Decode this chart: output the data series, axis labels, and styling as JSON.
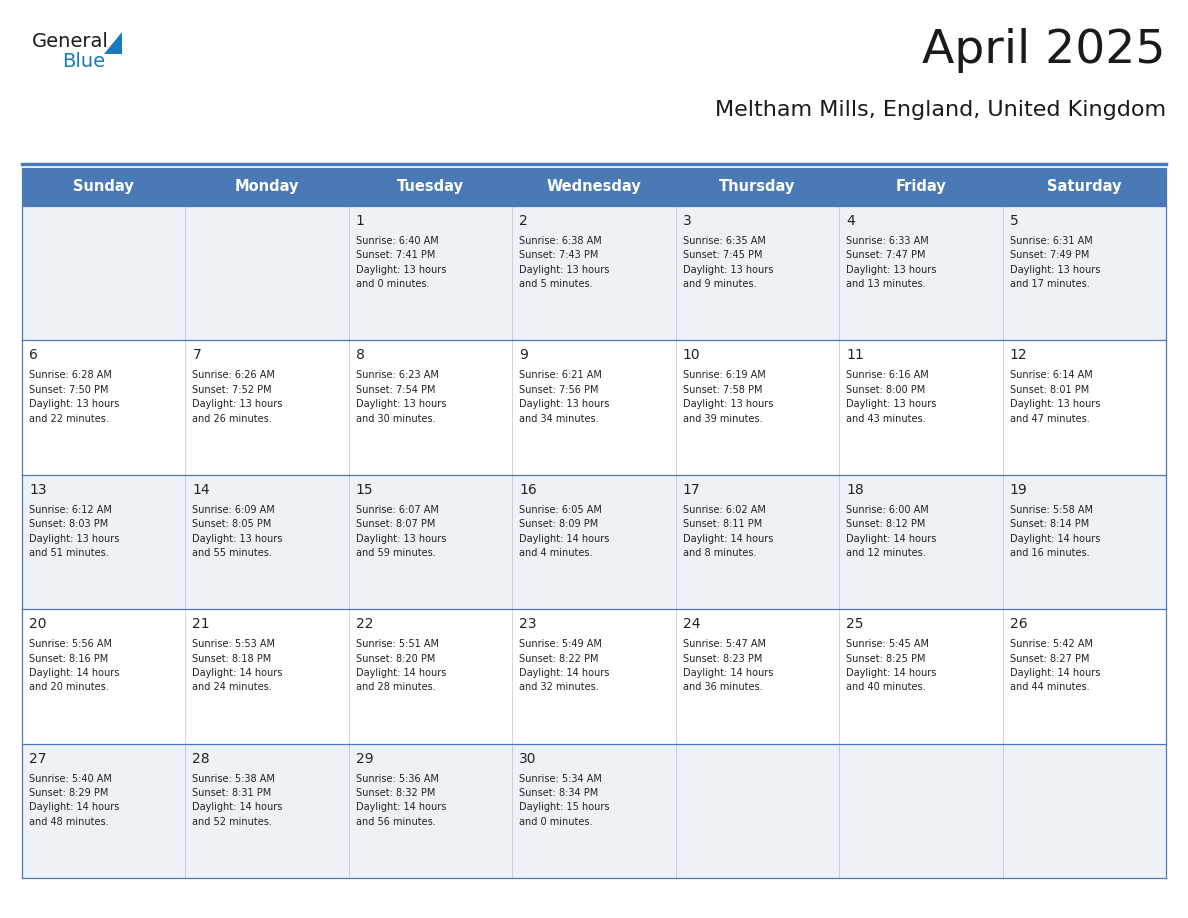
{
  "title": "April 2025",
  "subtitle": "Meltham Mills, England, United Kingdom",
  "days_of_week": [
    "Sunday",
    "Monday",
    "Tuesday",
    "Wednesday",
    "Thursday",
    "Friday",
    "Saturday"
  ],
  "header_bg": "#4a7ab5",
  "header_text": "#ffffff",
  "row_bg_odd": "#eef2f7",
  "row_bg_even": "#ffffff",
  "cell_border_color": "#4a7ab5",
  "day_number_color": "#222222",
  "info_text_color": "#222222",
  "title_color": "#1a1a1a",
  "subtitle_color": "#1a1a1a",
  "logo_general_color": "#1a1a1a",
  "logo_blue_color": "#1a7abf",
  "weeks": [
    [
      {
        "day": null,
        "info": ""
      },
      {
        "day": null,
        "info": ""
      },
      {
        "day": 1,
        "info": "Sunrise: 6:40 AM\nSunset: 7:41 PM\nDaylight: 13 hours\nand 0 minutes."
      },
      {
        "day": 2,
        "info": "Sunrise: 6:38 AM\nSunset: 7:43 PM\nDaylight: 13 hours\nand 5 minutes."
      },
      {
        "day": 3,
        "info": "Sunrise: 6:35 AM\nSunset: 7:45 PM\nDaylight: 13 hours\nand 9 minutes."
      },
      {
        "day": 4,
        "info": "Sunrise: 6:33 AM\nSunset: 7:47 PM\nDaylight: 13 hours\nand 13 minutes."
      },
      {
        "day": 5,
        "info": "Sunrise: 6:31 AM\nSunset: 7:49 PM\nDaylight: 13 hours\nand 17 minutes."
      }
    ],
    [
      {
        "day": 6,
        "info": "Sunrise: 6:28 AM\nSunset: 7:50 PM\nDaylight: 13 hours\nand 22 minutes."
      },
      {
        "day": 7,
        "info": "Sunrise: 6:26 AM\nSunset: 7:52 PM\nDaylight: 13 hours\nand 26 minutes."
      },
      {
        "day": 8,
        "info": "Sunrise: 6:23 AM\nSunset: 7:54 PM\nDaylight: 13 hours\nand 30 minutes."
      },
      {
        "day": 9,
        "info": "Sunrise: 6:21 AM\nSunset: 7:56 PM\nDaylight: 13 hours\nand 34 minutes."
      },
      {
        "day": 10,
        "info": "Sunrise: 6:19 AM\nSunset: 7:58 PM\nDaylight: 13 hours\nand 39 minutes."
      },
      {
        "day": 11,
        "info": "Sunrise: 6:16 AM\nSunset: 8:00 PM\nDaylight: 13 hours\nand 43 minutes."
      },
      {
        "day": 12,
        "info": "Sunrise: 6:14 AM\nSunset: 8:01 PM\nDaylight: 13 hours\nand 47 minutes."
      }
    ],
    [
      {
        "day": 13,
        "info": "Sunrise: 6:12 AM\nSunset: 8:03 PM\nDaylight: 13 hours\nand 51 minutes."
      },
      {
        "day": 14,
        "info": "Sunrise: 6:09 AM\nSunset: 8:05 PM\nDaylight: 13 hours\nand 55 minutes."
      },
      {
        "day": 15,
        "info": "Sunrise: 6:07 AM\nSunset: 8:07 PM\nDaylight: 13 hours\nand 59 minutes."
      },
      {
        "day": 16,
        "info": "Sunrise: 6:05 AM\nSunset: 8:09 PM\nDaylight: 14 hours\nand 4 minutes."
      },
      {
        "day": 17,
        "info": "Sunrise: 6:02 AM\nSunset: 8:11 PM\nDaylight: 14 hours\nand 8 minutes."
      },
      {
        "day": 18,
        "info": "Sunrise: 6:00 AM\nSunset: 8:12 PM\nDaylight: 14 hours\nand 12 minutes."
      },
      {
        "day": 19,
        "info": "Sunrise: 5:58 AM\nSunset: 8:14 PM\nDaylight: 14 hours\nand 16 minutes."
      }
    ],
    [
      {
        "day": 20,
        "info": "Sunrise: 5:56 AM\nSunset: 8:16 PM\nDaylight: 14 hours\nand 20 minutes."
      },
      {
        "day": 21,
        "info": "Sunrise: 5:53 AM\nSunset: 8:18 PM\nDaylight: 14 hours\nand 24 minutes."
      },
      {
        "day": 22,
        "info": "Sunrise: 5:51 AM\nSunset: 8:20 PM\nDaylight: 14 hours\nand 28 minutes."
      },
      {
        "day": 23,
        "info": "Sunrise: 5:49 AM\nSunset: 8:22 PM\nDaylight: 14 hours\nand 32 minutes."
      },
      {
        "day": 24,
        "info": "Sunrise: 5:47 AM\nSunset: 8:23 PM\nDaylight: 14 hours\nand 36 minutes."
      },
      {
        "day": 25,
        "info": "Sunrise: 5:45 AM\nSunset: 8:25 PM\nDaylight: 14 hours\nand 40 minutes."
      },
      {
        "day": 26,
        "info": "Sunrise: 5:42 AM\nSunset: 8:27 PM\nDaylight: 14 hours\nand 44 minutes."
      }
    ],
    [
      {
        "day": 27,
        "info": "Sunrise: 5:40 AM\nSunset: 8:29 PM\nDaylight: 14 hours\nand 48 minutes."
      },
      {
        "day": 28,
        "info": "Sunrise: 5:38 AM\nSunset: 8:31 PM\nDaylight: 14 hours\nand 52 minutes."
      },
      {
        "day": 29,
        "info": "Sunrise: 5:36 AM\nSunset: 8:32 PM\nDaylight: 14 hours\nand 56 minutes."
      },
      {
        "day": 30,
        "info": "Sunrise: 5:34 AM\nSunset: 8:34 PM\nDaylight: 15 hours\nand 0 minutes."
      },
      {
        "day": null,
        "info": ""
      },
      {
        "day": null,
        "info": ""
      },
      {
        "day": null,
        "info": ""
      }
    ]
  ]
}
